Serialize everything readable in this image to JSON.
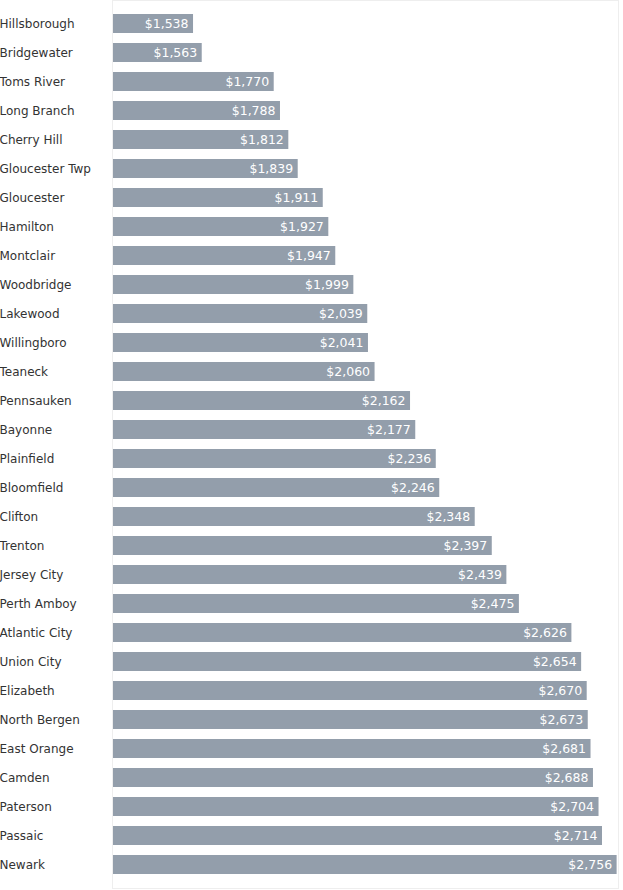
{
  "chart_data": {
    "type": "bar",
    "orientation": "horizontal",
    "categories": [
      "Hillsborough",
      "Bridgewater",
      "Toms River",
      "Long Branch",
      "Cherry Hill",
      "Gloucester Twp",
      "Gloucester",
      "Hamilton",
      "Montclair",
      "Woodbridge",
      "Lakewood",
      "Willingboro",
      "Teaneck",
      "Pennsauken",
      "Bayonne",
      "Plainfield",
      "Bloomfield",
      "Clifton",
      "Trenton",
      "Jersey City",
      "Perth Amboy",
      "Atlantic City",
      "Union City",
      "Elizabeth",
      "North Bergen",
      "East Orange",
      "Camden",
      "Paterson",
      "Passaic",
      "Newark"
    ],
    "values": [
      1538,
      1563,
      1770,
      1788,
      1812,
      1839,
      1911,
      1927,
      1947,
      1999,
      2039,
      2041,
      2060,
      2162,
      2177,
      2236,
      2246,
      2348,
      2397,
      2439,
      2475,
      2626,
      2654,
      2670,
      2673,
      2681,
      2688,
      2704,
      2714,
      2756
    ],
    "value_labels": [
      "$1,538",
      "$1,563",
      "$1,770",
      "$1,788",
      "$1,812",
      "$1,839",
      "$1,911",
      "$1,927",
      "$1,947",
      "$1,999",
      "$2,039",
      "$2,041",
      "$2,060",
      "$2,162",
      "$2,177",
      "$2,236",
      "$2,246",
      "$2,348",
      "$2,397",
      "$2,439",
      "$2,475",
      "$2,626",
      "$2,654",
      "$2,670",
      "$2,673",
      "$2,681",
      "$2,688",
      "$2,704",
      "$2,714",
      "$2,756"
    ],
    "color": "#939eab",
    "xlim": [
      1305,
      2760
    ],
    "data_labels": true,
    "tick_labels": "y",
    "grid": false
  }
}
